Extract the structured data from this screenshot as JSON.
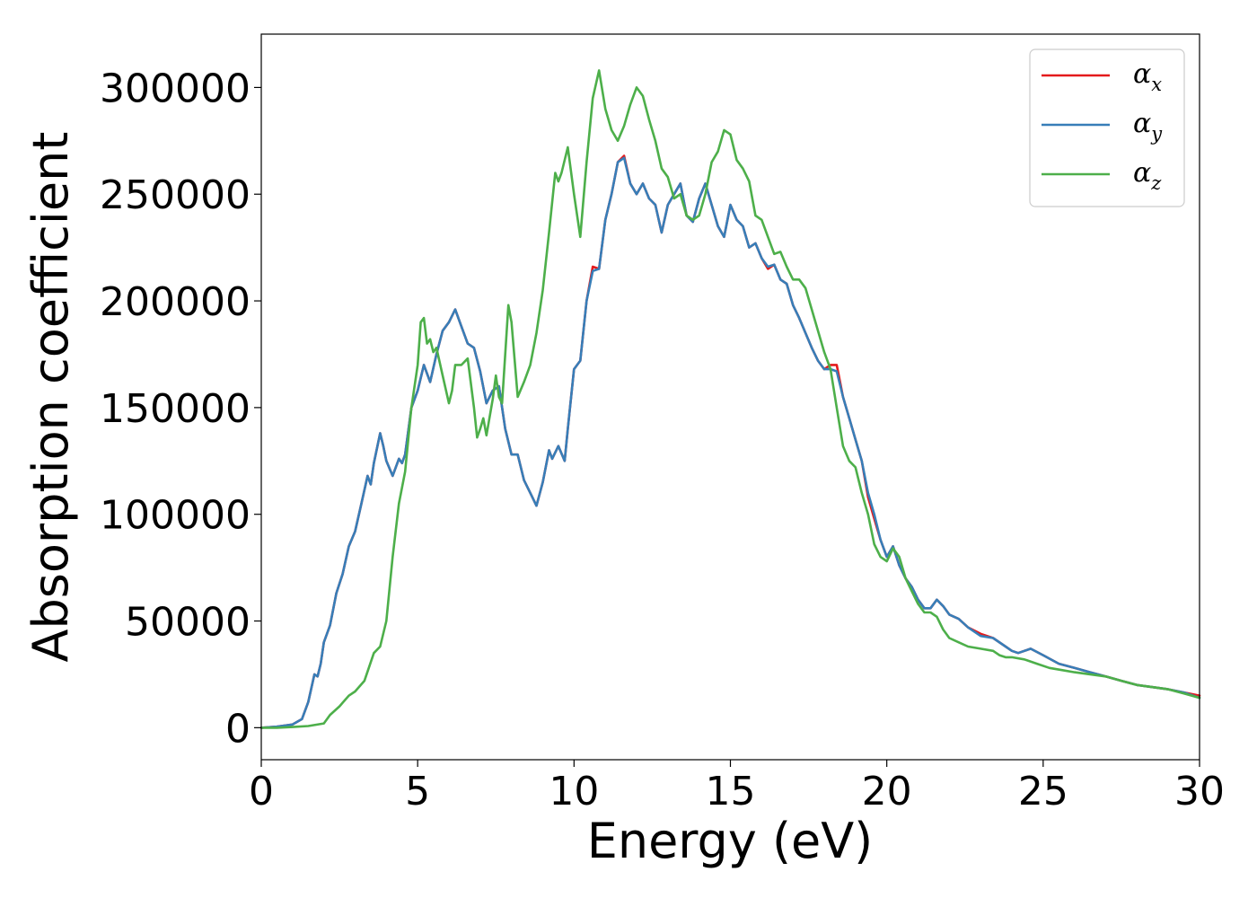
{
  "chart_data": {
    "type": "line",
    "title": "",
    "xlabel": "Energy (eV)",
    "ylabel": "Absorption coefficient",
    "xlim": [
      0,
      30
    ],
    "ylim": [
      -15000,
      325000
    ],
    "xticks": [
      0,
      5,
      10,
      15,
      20,
      25,
      30
    ],
    "xtick_labels": [
      "0",
      "5",
      "10",
      "15",
      "20",
      "25",
      "30"
    ],
    "yticks": [
      0,
      50000,
      100000,
      150000,
      200000,
      250000,
      300000
    ],
    "ytick_labels": [
      "0",
      "50000",
      "100000",
      "150000",
      "200000",
      "250000",
      "300000"
    ],
    "grid": false,
    "legend_position": "top-right",
    "series": [
      {
        "name": "α",
        "subscript": "x",
        "color": "#e41a1c",
        "x": [
          0,
          0.5,
          1.0,
          1.3,
          1.5,
          1.7,
          1.8,
          1.9,
          2.0,
          2.2,
          2.4,
          2.6,
          2.8,
          3.0,
          3.2,
          3.4,
          3.5,
          3.6,
          3.8,
          3.9,
          4.0,
          4.2,
          4.4,
          4.5,
          4.6,
          4.8,
          5.0,
          5.2,
          5.4,
          5.6,
          5.8,
          6.0,
          6.2,
          6.4,
          6.6,
          6.8,
          7.0,
          7.2,
          7.4,
          7.6,
          7.8,
          8.0,
          8.2,
          8.4,
          8.6,
          8.8,
          9.0,
          9.2,
          9.3,
          9.5,
          9.7,
          9.8,
          10.0,
          10.2,
          10.4,
          10.6,
          10.8,
          11.0,
          11.2,
          11.4,
          11.6,
          11.8,
          12.0,
          12.2,
          12.4,
          12.6,
          12.8,
          13.0,
          13.2,
          13.4,
          13.6,
          13.8,
          14.0,
          14.2,
          14.4,
          14.6,
          14.8,
          15.0,
          15.2,
          15.4,
          15.6,
          15.8,
          16.0,
          16.2,
          16.4,
          16.6,
          16.8,
          17.0,
          17.2,
          17.4,
          17.6,
          17.8,
          18.0,
          18.2,
          18.4,
          18.6,
          18.8,
          19.0,
          19.2,
          19.4,
          19.6,
          19.8,
          20.0,
          20.2,
          20.4,
          20.6,
          20.8,
          21.0,
          21.2,
          21.4,
          21.6,
          21.8,
          22.0,
          22.3,
          22.6,
          23.0,
          23.4,
          23.8,
          24.0,
          24.2,
          24.6,
          25.0,
          25.5,
          26.0,
          26.5,
          27.0,
          27.5,
          28.0,
          28.5,
          29.0,
          29.5,
          30.0
        ],
        "y": [
          0,
          500,
          1500,
          4000,
          12000,
          25000,
          24000,
          30000,
          40000,
          48000,
          63000,
          72000,
          85000,
          92000,
          105000,
          118000,
          114000,
          124000,
          138000,
          132000,
          125000,
          118000,
          126000,
          124000,
          128000,
          150000,
          158000,
          170000,
          162000,
          175000,
          186000,
          190000,
          196000,
          188000,
          180000,
          178000,
          167000,
          152000,
          158000,
          160000,
          140000,
          128000,
          128000,
          116000,
          110000,
          104000,
          115000,
          130000,
          126000,
          132000,
          125000,
          140000,
          168000,
          172000,
          200000,
          216000,
          215000,
          238000,
          250000,
          265000,
          268000,
          255000,
          250000,
          255000,
          248000,
          245000,
          232000,
          245000,
          250000,
          255000,
          240000,
          237000,
          248000,
          255000,
          245000,
          235000,
          230000,
          245000,
          238000,
          235000,
          225000,
          227000,
          220000,
          215000,
          217000,
          210000,
          208000,
          198000,
          192000,
          185000,
          178000,
          172000,
          168000,
          170000,
          170000,
          155000,
          145000,
          135000,
          125000,
          108000,
          98000,
          88000,
          80000,
          85000,
          76000,
          70000,
          66000,
          60000,
          56000,
          56000,
          60000,
          57000,
          53000,
          51000,
          47000,
          44000,
          42000,
          38000,
          36000,
          35000,
          37000,
          34000,
          30000,
          28000,
          26000,
          24000,
          22000,
          20000,
          19000,
          18000,
          16500,
          15000
        ]
      },
      {
        "name": "α",
        "subscript": "y",
        "color": "#377eb8",
        "x": [
          0,
          0.5,
          1.0,
          1.3,
          1.5,
          1.7,
          1.8,
          1.9,
          2.0,
          2.2,
          2.4,
          2.6,
          2.8,
          3.0,
          3.2,
          3.4,
          3.5,
          3.6,
          3.8,
          3.9,
          4.0,
          4.2,
          4.4,
          4.5,
          4.6,
          4.8,
          5.0,
          5.2,
          5.4,
          5.6,
          5.8,
          6.0,
          6.2,
          6.4,
          6.6,
          6.8,
          7.0,
          7.2,
          7.4,
          7.6,
          7.8,
          8.0,
          8.2,
          8.4,
          8.6,
          8.8,
          9.0,
          9.2,
          9.3,
          9.5,
          9.7,
          9.8,
          10.0,
          10.2,
          10.4,
          10.6,
          10.8,
          11.0,
          11.2,
          11.4,
          11.6,
          11.8,
          12.0,
          12.2,
          12.4,
          12.6,
          12.8,
          13.0,
          13.2,
          13.4,
          13.6,
          13.8,
          14.0,
          14.2,
          14.4,
          14.6,
          14.8,
          15.0,
          15.2,
          15.4,
          15.6,
          15.8,
          16.0,
          16.2,
          16.4,
          16.6,
          16.8,
          17.0,
          17.2,
          17.4,
          17.6,
          17.8,
          18.0,
          18.2,
          18.4,
          18.6,
          18.8,
          19.0,
          19.2,
          19.4,
          19.6,
          19.8,
          20.0,
          20.2,
          20.4,
          20.6,
          20.8,
          21.0,
          21.2,
          21.4,
          21.6,
          21.8,
          22.0,
          22.3,
          22.6,
          23.0,
          23.4,
          23.8,
          24.0,
          24.2,
          24.6,
          25.0,
          25.5,
          26.0,
          26.5,
          27.0,
          27.5,
          28.0,
          28.5,
          29.0,
          29.5,
          30.0
        ],
        "y": [
          0,
          500,
          1500,
          4000,
          12000,
          25000,
          24000,
          30000,
          40000,
          48000,
          63000,
          72000,
          85000,
          92000,
          105000,
          118000,
          114000,
          124000,
          138000,
          132000,
          125000,
          118000,
          126000,
          124000,
          128000,
          150000,
          158000,
          170000,
          162000,
          175000,
          186000,
          190000,
          196000,
          188000,
          180000,
          178000,
          167000,
          152000,
          158000,
          160000,
          140000,
          128000,
          128000,
          116000,
          110000,
          104000,
          115000,
          130000,
          126000,
          132000,
          125000,
          140000,
          168000,
          172000,
          200000,
          214000,
          215000,
          238000,
          250000,
          265000,
          267000,
          255000,
          250000,
          255000,
          248000,
          245000,
          232000,
          245000,
          250000,
          255000,
          240000,
          237000,
          248000,
          255000,
          245000,
          235000,
          230000,
          245000,
          238000,
          235000,
          225000,
          227000,
          220000,
          216000,
          217000,
          210000,
          208000,
          198000,
          192000,
          185000,
          178000,
          172000,
          168000,
          168000,
          167000,
          155000,
          145000,
          135000,
          125000,
          110000,
          100000,
          88000,
          80000,
          85000,
          76000,
          70000,
          66000,
          60000,
          56000,
          56000,
          60000,
          57000,
          53000,
          51000,
          47000,
          43000,
          42000,
          38000,
          36000,
          35000,
          37000,
          34000,
          30000,
          28000,
          26000,
          24000,
          22000,
          20000,
          19000,
          18000,
          16500,
          14000
        ]
      },
      {
        "name": "α",
        "subscript": "z",
        "color": "#4daf4a",
        "x": [
          0,
          0.5,
          1.0,
          1.5,
          2.0,
          2.2,
          2.5,
          2.8,
          3.0,
          3.3,
          3.6,
          3.8,
          4.0,
          4.2,
          4.4,
          4.6,
          4.8,
          5.0,
          5.1,
          5.2,
          5.3,
          5.4,
          5.5,
          5.6,
          5.8,
          6.0,
          6.1,
          6.2,
          6.4,
          6.6,
          6.8,
          6.9,
          7.0,
          7.1,
          7.2,
          7.4,
          7.5,
          7.6,
          7.7,
          7.8,
          7.9,
          8.0,
          8.2,
          8.4,
          8.6,
          8.8,
          9.0,
          9.2,
          9.4,
          9.5,
          9.6,
          9.8,
          10.0,
          10.2,
          10.4,
          10.6,
          10.8,
          11.0,
          11.2,
          11.4,
          11.6,
          11.8,
          12.0,
          12.2,
          12.4,
          12.6,
          12.8,
          13.0,
          13.2,
          13.4,
          13.6,
          13.8,
          14.0,
          14.2,
          14.4,
          14.6,
          14.8,
          15.0,
          15.2,
          15.4,
          15.6,
          15.8,
          16.0,
          16.2,
          16.4,
          16.6,
          16.8,
          17.0,
          17.2,
          17.4,
          17.6,
          17.8,
          18.0,
          18.2,
          18.4,
          18.6,
          18.8,
          19.0,
          19.2,
          19.4,
          19.6,
          19.8,
          20.0,
          20.2,
          20.4,
          20.6,
          20.8,
          21.0,
          21.2,
          21.4,
          21.6,
          21.8,
          22.0,
          22.3,
          22.6,
          23.0,
          23.4,
          23.6,
          23.8,
          24.0,
          24.4,
          24.8,
          25.2,
          25.6,
          26.0,
          26.5,
          27.0,
          27.5,
          28.0,
          28.5,
          29.0,
          29.5,
          30.0
        ],
        "y": [
          0,
          0,
          300,
          800,
          2000,
          6000,
          10000,
          15000,
          17000,
          22000,
          35000,
          38000,
          50000,
          80000,
          105000,
          120000,
          150000,
          170000,
          190000,
          192000,
          180000,
          182000,
          176000,
          178000,
          165000,
          152000,
          158000,
          170000,
          170000,
          173000,
          150000,
          136000,
          140000,
          145000,
          137000,
          154000,
          165000,
          155000,
          152000,
          175000,
          198000,
          190000,
          155000,
          162000,
          170000,
          185000,
          205000,
          232000,
          260000,
          256000,
          260000,
          272000,
          250000,
          230000,
          265000,
          295000,
          308000,
          290000,
          280000,
          275000,
          282000,
          292000,
          300000,
          296000,
          285000,
          275000,
          262000,
          258000,
          248000,
          250000,
          240000,
          238000,
          240000,
          250000,
          265000,
          270000,
          280000,
          278000,
          266000,
          262000,
          256000,
          240000,
          238000,
          230000,
          222000,
          223000,
          216000,
          210000,
          210000,
          206000,
          196000,
          186000,
          176000,
          168000,
          150000,
          132000,
          125000,
          122000,
          110000,
          100000,
          86000,
          80000,
          78000,
          84000,
          80000,
          70000,
          64000,
          58000,
          54000,
          54000,
          52000,
          46000,
          42000,
          40000,
          38000,
          37000,
          36000,
          34000,
          33000,
          33000,
          32000,
          30000,
          28000,
          27000,
          26000,
          25000,
          24000,
          22000,
          20000,
          19000,
          18000,
          16000,
          14000
        ]
      }
    ]
  }
}
